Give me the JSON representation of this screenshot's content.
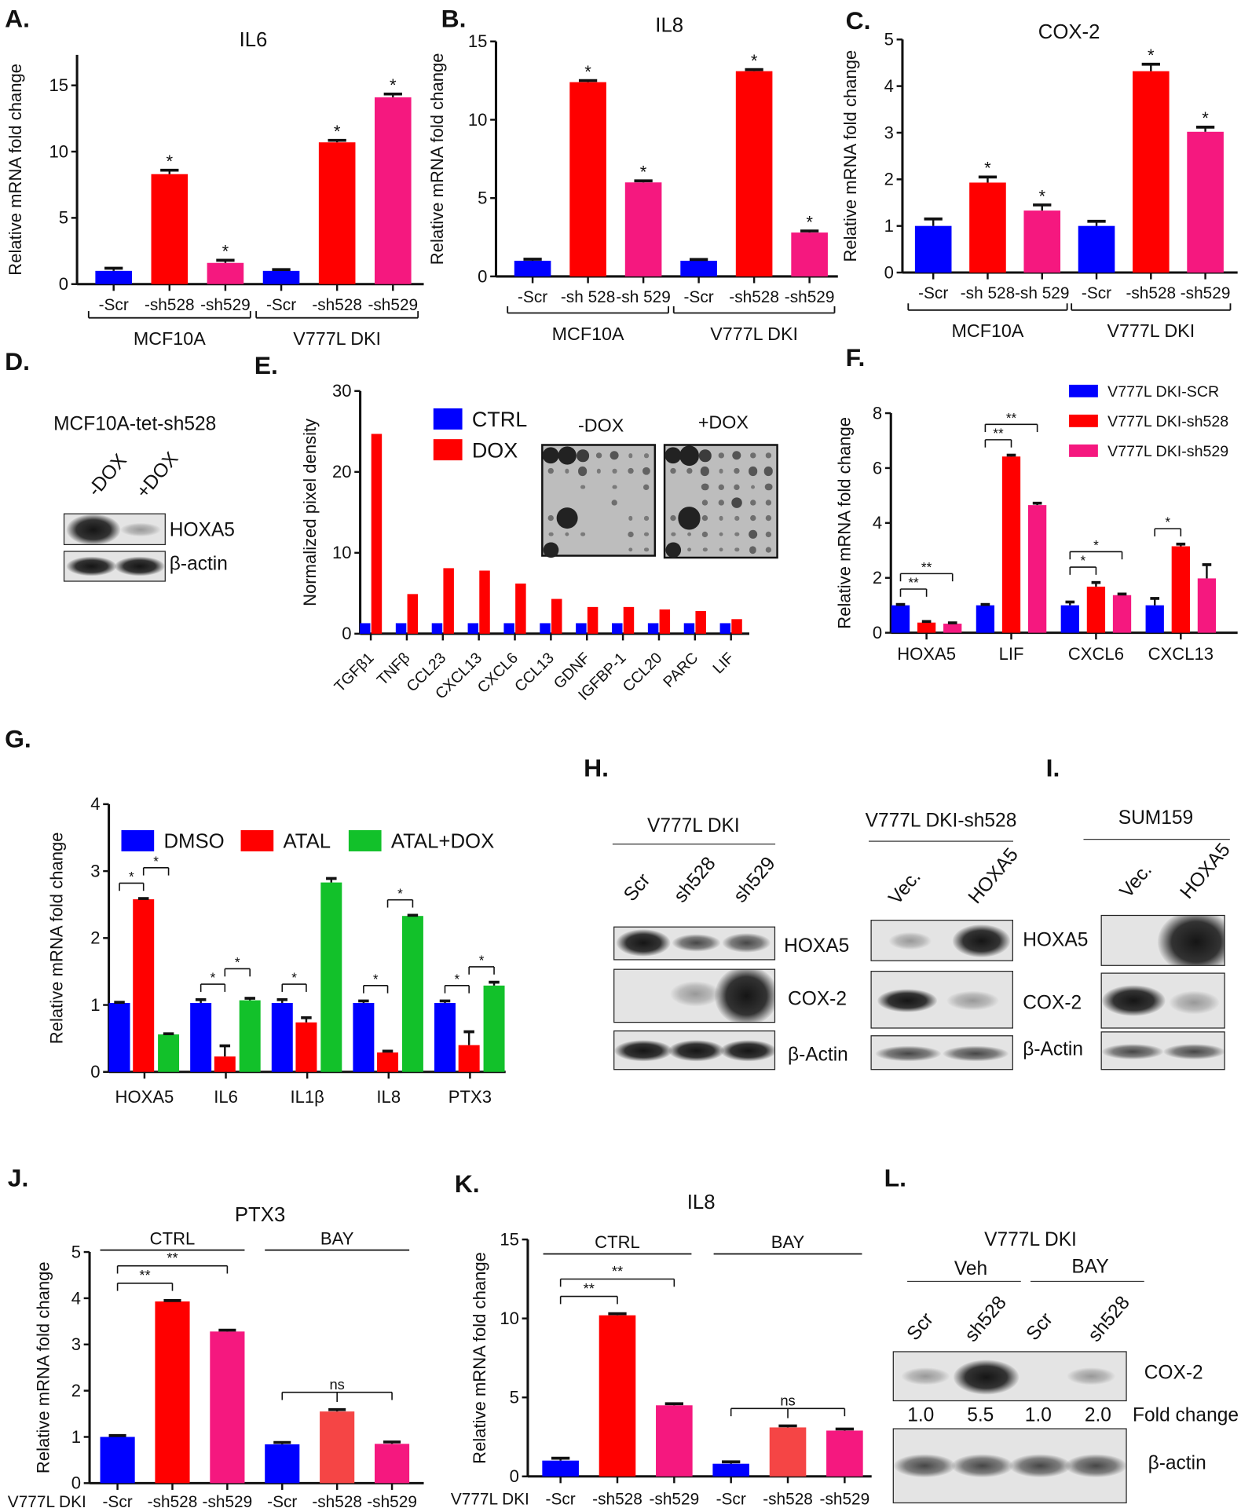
{
  "panels": {
    "A": "A.",
    "B": "B.",
    "C": "C.",
    "D": "D.",
    "E": "E.",
    "F": "F.",
    "G": "G.",
    "H": "H.",
    "I": "I.",
    "J": "J.",
    "K": "K.",
    "L": "L."
  },
  "colors": {
    "blue": "#0000ff",
    "red": "#ff0000",
    "pink": "#f5187f",
    "green": "#12c12a",
    "light_red": "#f54545"
  },
  "chart_data": [
    {
      "panel": "A",
      "type": "bar",
      "title": "IL6",
      "ylabel": "Relative mRNA fold change",
      "ylim": [
        0,
        17.3
      ],
      "yticks": [
        0,
        5,
        10,
        15
      ],
      "categories": [
        "-Scr",
        "-sh528",
        "-sh529",
        "-Scr",
        "-sh528",
        "-sh529"
      ],
      "values": [
        1.0,
        8.3,
        1.6,
        1.0,
        10.7,
        14.1
      ],
      "errors": [
        0.2,
        0.3,
        0.2,
        0.1,
        0.15,
        0.25
      ],
      "colors": [
        "#0000ff",
        "#ff0000",
        "#f5187f",
        "#0000ff",
        "#ff0000",
        "#f5187f"
      ],
      "significance": [
        "",
        "*",
        "*",
        "",
        "*",
        "*"
      ],
      "groups": [
        {
          "label": "MCF10A",
          "from": 0,
          "to": 2
        },
        {
          "label": "V777L DKI",
          "from": 3,
          "to": 5
        }
      ]
    },
    {
      "panel": "B",
      "type": "bar",
      "title": "IL8",
      "ylabel": "Relative mRNA fold change",
      "ylim": [
        0,
        15
      ],
      "yticks": [
        0,
        5,
        10,
        15
      ],
      "categories": [
        "-Scr",
        "-sh 528",
        "-sh 529",
        "-Scr",
        "-sh528",
        "-sh529"
      ],
      "values": [
        1.0,
        12.4,
        6.0,
        1.0,
        13.1,
        2.8
      ],
      "errors": [
        0.1,
        0.1,
        0.1,
        0.08,
        0.1,
        0.1
      ],
      "colors": [
        "#0000ff",
        "#ff0000",
        "#f5187f",
        "#0000ff",
        "#ff0000",
        "#f5187f"
      ],
      "significance": [
        "",
        "*",
        "*",
        "",
        "*",
        "*"
      ],
      "groups": [
        {
          "label": "MCF10A",
          "from": 0,
          "to": 2
        },
        {
          "label": "V777L DKI",
          "from": 3,
          "to": 5
        }
      ]
    },
    {
      "panel": "C",
      "type": "bar",
      "title": "COX-2",
      "ylabel": "Relative mRNA fold change",
      "ylim": [
        0,
        5
      ],
      "yticks": [
        0,
        1,
        2,
        3,
        4,
        5
      ],
      "categories": [
        "-Scr",
        "-sh 528",
        "-sh 529",
        "-Scr",
        "-sh528",
        "-sh529"
      ],
      "values": [
        1.0,
        1.93,
        1.33,
        1.0,
        4.32,
        3.02
      ],
      "errors": [
        0.15,
        0.12,
        0.12,
        0.1,
        0.15,
        0.1
      ],
      "colors": [
        "#0000ff",
        "#ff0000",
        "#f5187f",
        "#0000ff",
        "#ff0000",
        "#f5187f"
      ],
      "significance": [
        "",
        "*",
        "*",
        "",
        "*",
        "*"
      ],
      "groups": [
        {
          "label": "MCF10A",
          "from": 0,
          "to": 2
        },
        {
          "label": "V777L DKI",
          "from": 3,
          "to": 5
        }
      ]
    },
    {
      "panel": "E",
      "type": "bar",
      "ylabel": "Normalized pixel density",
      "ylim": [
        0,
        30
      ],
      "yticks": [
        0,
        10,
        20,
        30
      ],
      "categories": [
        "TGFβ1",
        "TNFβ",
        "CCL23",
        "CXCL13",
        "CXCL6",
        "CCL13",
        "GDNF",
        "IGFBP-1",
        "CCL20",
        "PARC",
        "LIF"
      ],
      "series": [
        {
          "name": "CTRL",
          "color": "#0000ff",
          "values": [
            1.3,
            1.3,
            1.3,
            1.3,
            1.3,
            1.3,
            1.3,
            1.3,
            1.3,
            1.3,
            1.3
          ]
        },
        {
          "name": "DOX",
          "color": "#ff0000",
          "values": [
            24.7,
            4.9,
            8.1,
            7.8,
            6.2,
            4.3,
            3.3,
            3.3,
            3.0,
            2.8,
            1.8
          ]
        }
      ],
      "legend_placement": "top-left",
      "inset_labels": [
        "-DOX",
        "+DOX"
      ]
    },
    {
      "panel": "F",
      "type": "bar",
      "ylabel": "Relative mRNA fold change",
      "ylim": [
        0,
        8
      ],
      "yticks": [
        0,
        2,
        4,
        6,
        8
      ],
      "categories": [
        "HOXA5",
        "LIF",
        "CXCL6",
        "CXCL13"
      ],
      "series": [
        {
          "name": "V777L DKI-SCR",
          "color": "#0000ff",
          "values": [
            1.0,
            1.0,
            1.0,
            1.0
          ],
          "errors": [
            0.03,
            0.03,
            0.12,
            0.25
          ]
        },
        {
          "name": "V777L DKI-sh528",
          "color": "#ff0000",
          "values": [
            0.37,
            6.42,
            1.68,
            3.15
          ],
          "errors": [
            0.04,
            0.05,
            0.15,
            0.08
          ]
        },
        {
          "name": "V777L DKI-sh529",
          "color": "#f5187f",
          "values": [
            0.33,
            4.65,
            1.37,
            1.98
          ],
          "errors": [
            0.03,
            0.07,
            0.04,
            0.5
          ]
        }
      ],
      "brackets": [
        {
          "group": 0,
          "a": 0,
          "b": 1,
          "label": "**"
        },
        {
          "group": 0,
          "a": 0,
          "b": 2,
          "label": "**"
        },
        {
          "group": 1,
          "a": 0,
          "b": 1,
          "label": "**"
        },
        {
          "group": 1,
          "a": 0,
          "b": 2,
          "label": "**"
        },
        {
          "group": 2,
          "a": 0,
          "b": 1,
          "label": "*"
        },
        {
          "group": 2,
          "a": 0,
          "b": 2,
          "label": "*"
        },
        {
          "group": 3,
          "a": 0,
          "b": 1,
          "label": "*"
        }
      ],
      "legend_placement": "top-right"
    },
    {
      "panel": "G",
      "type": "bar",
      "ylabel": "Relative mRNA fold change",
      "ylim": [
        0,
        4
      ],
      "yticks": [
        0,
        1,
        2,
        3,
        4
      ],
      "categories": [
        "HOXA5",
        "IL6",
        "IL1β",
        "IL8",
        "PTX3"
      ],
      "series": [
        {
          "name": "DMSO",
          "color": "#0000ff",
          "values": [
            1.03,
            1.03,
            1.03,
            1.03,
            1.03
          ],
          "errors": [
            0.01,
            0.05,
            0.05,
            0.03,
            0.03
          ]
        },
        {
          "name": "ATAL",
          "color": "#ff0000",
          "values": [
            2.58,
            0.23,
            0.74,
            0.29,
            0.4
          ],
          "errors": [
            0.01,
            0.16,
            0.07,
            0.02,
            0.2
          ]
        },
        {
          "name": "ATAL+DOX",
          "color": "#12c12a",
          "values": [
            0.56,
            1.07,
            2.83,
            2.33,
            1.29
          ],
          "errors": [
            0.01,
            0.03,
            0.06,
            0.01,
            0.05
          ]
        }
      ],
      "brackets": [
        {
          "group": 0,
          "a": 0,
          "b": 1,
          "label": "*"
        },
        {
          "group": 0,
          "a": 1,
          "b": 2,
          "label": "*"
        },
        {
          "group": 1,
          "a": 0,
          "b": 1,
          "label": "*"
        },
        {
          "group": 1,
          "a": 1,
          "b": 2,
          "label": "*"
        },
        {
          "group": 2,
          "a": 0,
          "b": 1,
          "label": "*"
        },
        {
          "group": 3,
          "a": 0,
          "b": 1,
          "label": "*"
        },
        {
          "group": 3,
          "a": 1,
          "b": 2,
          "label": "*"
        },
        {
          "group": 4,
          "a": 0,
          "b": 1,
          "label": "*"
        },
        {
          "group": 4,
          "a": 1,
          "b": 2,
          "label": "*"
        }
      ],
      "legend_placement": "top"
    },
    {
      "panel": "J",
      "type": "bar",
      "title": "PTX3",
      "ylabel": "Relative mRNA fold change",
      "ylim": [
        0,
        5
      ],
      "yticks": [
        0,
        1,
        2,
        3,
        4,
        5
      ],
      "row_label": "V777L DKI",
      "categories": [
        "-Scr",
        "-sh528",
        "-sh529",
        "-Scr",
        "-sh528",
        "-sh529"
      ],
      "values": [
        1.0,
        3.93,
        3.28,
        0.84,
        1.55,
        0.85
      ],
      "errors": [
        0.03,
        0.02,
        0.03,
        0.04,
        0.04,
        0.04
      ],
      "colors": [
        "#0000ff",
        "#ff0000",
        "#f5187f",
        "#0000ff",
        "#f54545",
        "#f5187f"
      ],
      "top_groups": [
        {
          "label": "CTRL",
          "from": 0,
          "to": 2
        },
        {
          "label": "BAY",
          "from": 3,
          "to": 5
        }
      ],
      "brackets": [
        {
          "a": 0,
          "b": 1,
          "label": "**"
        },
        {
          "a": 0,
          "b": 2,
          "label": "**"
        },
        {
          "a": 3,
          "b": 5,
          "mid": 4,
          "label": "ns"
        }
      ]
    },
    {
      "panel": "K",
      "type": "bar",
      "title": "IL8",
      "ylabel": "Relative mRNA fold change",
      "ylim": [
        0,
        15
      ],
      "yticks": [
        0,
        5,
        10,
        15
      ],
      "row_label": "V777L DKI",
      "categories": [
        "-Scr",
        "-sh528",
        "-sh529",
        "-Scr",
        "-sh528",
        "-sh529"
      ],
      "values": [
        1.0,
        10.2,
        4.5,
        0.8,
        3.1,
        2.9
      ],
      "errors": [
        0.15,
        0.1,
        0.1,
        0.12,
        0.1,
        0.1
      ],
      "colors": [
        "#0000ff",
        "#ff0000",
        "#f5187f",
        "#0000ff",
        "#f54545",
        "#f5187f"
      ],
      "top_groups": [
        {
          "label": "CTRL",
          "from": 0,
          "to": 2
        },
        {
          "label": "BAY",
          "from": 3,
          "to": 5
        }
      ],
      "brackets": [
        {
          "a": 0,
          "b": 1,
          "label": "**"
        },
        {
          "a": 0,
          "b": 2,
          "label": "**"
        },
        {
          "a": 3,
          "b": 5,
          "mid": 4,
          "label": "ns"
        }
      ]
    }
  ],
  "blots": {
    "D": {
      "title": "MCF10A-tet-sh528",
      "lanes": [
        "-DOX",
        "+DOX"
      ],
      "rows": [
        "HOXA5",
        "β-actin"
      ]
    },
    "H1": {
      "title": "V777L DKI",
      "lanes": [
        "Scr",
        "sh528",
        "sh529"
      ],
      "rows": [
        "HOXA5",
        "COX-2",
        "β-Actin"
      ]
    },
    "H2": {
      "title": "V777L DKI-sh528",
      "lanes": [
        "Vec.",
        "HOXA5"
      ]
    },
    "I": {
      "title": "SUM159",
      "lanes": [
        "Vec.",
        "HOXA5"
      ],
      "rows": [
        "HOXA5",
        "COX-2",
        "β-Actin"
      ]
    },
    "L": {
      "title": "V777L DKI",
      "groups": [
        "Veh",
        "BAY"
      ],
      "lanes": [
        "Scr",
        "sh528",
        "Scr",
        "sh528"
      ],
      "rows": [
        "COX-2",
        "β-actin"
      ],
      "fold_change_label": "Fold change",
      "fold_change": [
        "1.0",
        "5.5",
        "1.0",
        "2.0"
      ]
    }
  }
}
